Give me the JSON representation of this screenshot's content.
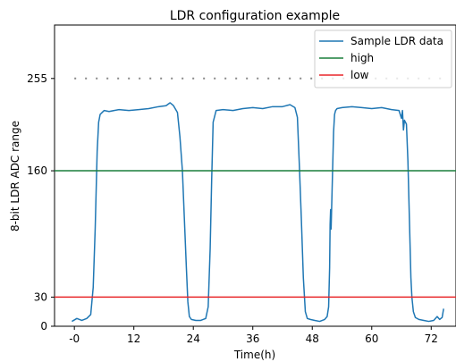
{
  "chart_data": {
    "type": "line",
    "title": "LDR configuration example",
    "xlabel": "Time(h)",
    "ylabel": "8-bit LDR ADC range",
    "xlim": [
      -4,
      77
    ],
    "ylim": [
      0,
      310
    ],
    "xticks": [
      0,
      12,
      24,
      36,
      48,
      60,
      72
    ],
    "xtick_labels": [
      "-0",
      "12",
      "24",
      "36",
      "48",
      "60",
      "72"
    ],
    "yticks": [
      0,
      30,
      160,
      255
    ],
    "ytick_labels": [
      "0",
      "30",
      "160",
      "255"
    ],
    "grid": false,
    "legend_position": "upper-right",
    "series": [
      {
        "name": "Sample LDR data",
        "color": "#1f77b4",
        "x": [
          -0.5,
          0.5,
          1.5,
          2.5,
          3.3,
          3.8,
          4.2,
          4.6,
          4.9,
          5.2,
          5.6,
          6.0,
          7.0,
          9.0,
          11.0,
          13.0,
          15.0,
          17.0,
          18.5,
          19.3,
          20.0,
          20.8,
          21.3,
          21.8,
          22.2,
          22.6,
          22.9,
          23.2,
          23.6,
          24.5,
          25.5,
          26.5,
          27.0,
          27.4,
          27.7,
          28.0,
          28.6,
          30.0,
          32.0,
          34.0,
          36.0,
          38.0,
          40.0,
          42.0,
          43.5,
          44.5,
          45.0,
          45.4,
          45.8,
          46.2,
          46.6,
          47.0,
          47.6,
          48.5,
          49.5,
          50.5,
          51.0,
          51.3,
          51.5,
          51.6,
          51.7,
          51.8,
          52.0,
          52.3,
          52.5,
          52.7,
          53.0,
          54.0,
          56.0,
          58.0,
          60.0,
          62.0,
          64.0,
          65.5,
          66.0,
          66.2,
          66.4,
          66.6,
          67.0,
          67.3,
          67.6,
          67.9,
          68.1,
          68.4,
          68.8,
          69.5,
          70.5,
          71.5,
          72.5,
          73.2,
          73.7,
          74.2,
          74.5
        ],
        "y": [
          5,
          8,
          6,
          8,
          12,
          40,
          100,
          180,
          210,
          218,
          220,
          222,
          221,
          223,
          222,
          223,
          224,
          226,
          227,
          230,
          227,
          220,
          195,
          160,
          110,
          60,
          25,
          10,
          7,
          6,
          6,
          8,
          20,
          80,
          150,
          210,
          222,
          223,
          222,
          224,
          225,
          224,
          226,
          226,
          228,
          225,
          215,
          165,
          110,
          50,
          15,
          8,
          7,
          6,
          5,
          7,
          10,
          20,
          60,
          105,
          120,
          100,
          140,
          200,
          218,
          222,
          224,
          225,
          226,
          225,
          224,
          225,
          223,
          222,
          214,
          222,
          202,
          212,
          208,
          170,
          110,
          50,
          30,
          15,
          9,
          7,
          6,
          5,
          6,
          10,
          7,
          9,
          18
        ]
      },
      {
        "name": "high",
        "color": "#1a7f3c",
        "x": [
          -4,
          77
        ],
        "y": [
          160,
          160
        ]
      },
      {
        "name": "low",
        "color": "#e8262a",
        "x": [
          -4,
          77
        ],
        "y": [
          30,
          30
        ]
      }
    ],
    "reference_lines": [
      {
        "y": 255,
        "style": "dotted",
        "color": "#888888",
        "x_range": [
          0,
          74.5
        ]
      }
    ]
  }
}
